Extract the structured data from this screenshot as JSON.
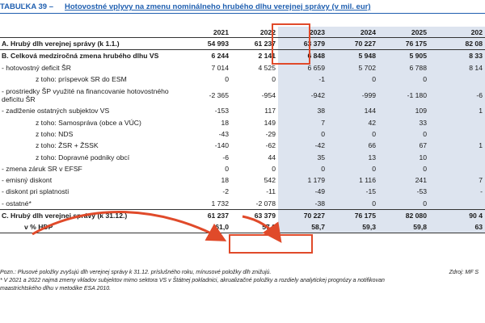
{
  "title": {
    "label": "TABUĽKA 39 –",
    "text": "Hotovostné vplyvy na zmenu nominálneho hrubého dlhu verejnej správy (v mil. eur)"
  },
  "table": {
    "years": [
      "2021",
      "2022",
      "2023",
      "2024",
      "2025",
      "202"
    ],
    "rows": [
      {
        "label": "A. Hrubý dlh verejnej správy (k 1.1.)",
        "values": [
          "54 993",
          "61 237",
          "63 379",
          "70 227",
          "76 175",
          "82 08"
        ]
      },
      {
        "label": "B. Celková medziročná zmena hrubého dlhu VS",
        "values": [
          "6 244",
          "2 141",
          "6 848",
          "5 948",
          "5 905",
          "8 33"
        ]
      },
      {
        "label": "- hotovostný deficit ŠR",
        "values": [
          "7 014",
          "4 525",
          "6 659",
          "5 702",
          "6 788",
          "8 14"
        ]
      },
      {
        "label": "z toho: príspevok SR do ESM",
        "values": [
          "0",
          "0",
          "-1",
          "0",
          "0",
          ""
        ]
      },
      {
        "label": "- prostriedky ŠP využité na financovanie hotovostného deficitu ŠR",
        "values": [
          "-2 365",
          "-954",
          "-942",
          "-999",
          "-1 180",
          "-6"
        ]
      },
      {
        "label": "- zadlženie ostatných subjektov VS",
        "values": [
          "-153",
          "117",
          "38",
          "144",
          "109",
          "1"
        ]
      },
      {
        "label": "z toho: Samospráva (obce a VÚC)",
        "values": [
          "18",
          "149",
          "7",
          "42",
          "33",
          ""
        ]
      },
      {
        "label": "z toho: NDS",
        "values": [
          "-43",
          "-29",
          "0",
          "0",
          "0",
          ""
        ]
      },
      {
        "label": "z toho: ŽSR + ŽSSK",
        "values": [
          "-140",
          "-62",
          "-42",
          "66",
          "67",
          "1"
        ]
      },
      {
        "label": "z toho: Dopravné podniky obcí",
        "values": [
          "-6",
          "44",
          "35",
          "13",
          "10",
          ""
        ]
      },
      {
        "label": "- zmena záruk SR v EFSF",
        "values": [
          "0",
          "0",
          "0",
          "0",
          "0",
          ""
        ]
      },
      {
        "label": "- emisný diskont",
        "values": [
          "18",
          "542",
          "1 179",
          "1 116",
          "241",
          "7"
        ]
      },
      {
        "label": "- diskont pri splatnosti",
        "values": [
          "-2",
          "-11",
          "-49",
          "-15",
          "-53",
          "-"
        ]
      },
      {
        "label": "- ostatné*",
        "values": [
          "1 732",
          "-2 078",
          "-38",
          "0",
          "0",
          ""
        ]
      },
      {
        "label": "C. Hrubý dlh verejnej správy (k 31.12.)",
        "values": [
          "61 237",
          "63 379",
          "70 227",
          "76 175",
          "82 080",
          "90 4"
        ]
      },
      {
        "label": "v % HDP",
        "values": [
          "61,0",
          "57,8",
          "58,7",
          "59,3",
          "59,8",
          "63"
        ]
      }
    ]
  },
  "notes": {
    "line1": "Pozn.: Plusové položky zvyšujú dlh verejnej správy k 31.12. príslušného roku, mínusové položky dlh znižujú.",
    "source": "Zdroj: MF S",
    "line2": "* V 2021 a 2022 najmä zmeny vkladov subjektov mimo sektora VS v Štátnej pokladnici, akrualizačné položky a rozdiely analytickej prognózy a notifikovan",
    "line3": "maastrichtského dlhu v metodike ESA 2010."
  },
  "colors": {
    "title": "#1f5fb0",
    "highlight": "#e04a2a",
    "shade": "#dde4ef"
  }
}
